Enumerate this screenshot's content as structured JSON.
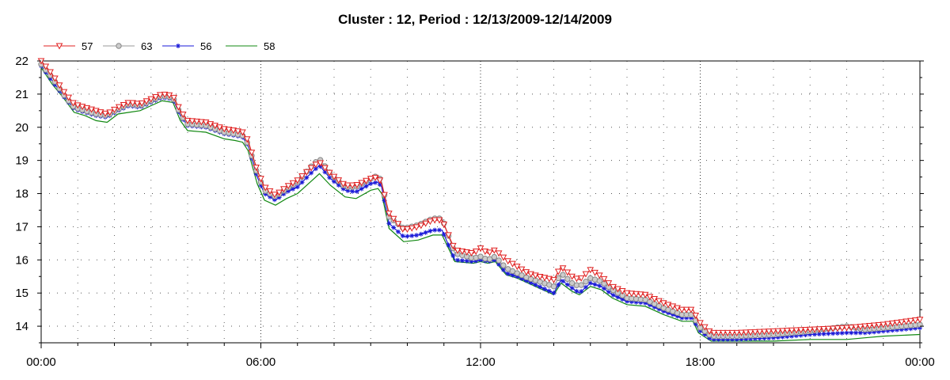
{
  "chart_data": {
    "type": "line",
    "title": "Cluster : 12, Period : 12/13/2009-12/14/2009",
    "xlabel": "",
    "ylabel": "",
    "x_ticks": [
      "00:00",
      "06:00",
      "12:00",
      "18:00",
      "00:00"
    ],
    "x_range_hours": [
      0,
      24
    ],
    "y_ticks": [
      "14",
      "15",
      "16",
      "17",
      "18",
      "19",
      "20",
      "21",
      "22"
    ],
    "ylim": [
      13.5,
      22
    ],
    "grid": "dotted",
    "legend_position": "top-left",
    "series": [
      {
        "name": "57",
        "color": "#e02020",
        "marker": "triangle-down",
        "points": [
          [
            0,
            22.0
          ],
          [
            0.3,
            21.6
          ],
          [
            0.6,
            21.1
          ],
          [
            0.9,
            20.7
          ],
          [
            1.2,
            20.6
          ],
          [
            1.5,
            20.5
          ],
          [
            1.8,
            20.4
          ],
          [
            2.1,
            20.6
          ],
          [
            2.4,
            20.75
          ],
          [
            2.7,
            20.7
          ],
          [
            3.0,
            20.85
          ],
          [
            3.3,
            21.0
          ],
          [
            3.6,
            20.95
          ],
          [
            3.8,
            20.5
          ],
          [
            4.0,
            20.2
          ],
          [
            4.5,
            20.15
          ],
          [
            5.0,
            19.95
          ],
          [
            5.3,
            19.9
          ],
          [
            5.5,
            19.85
          ],
          [
            5.65,
            19.6
          ],
          [
            5.9,
            18.7
          ],
          [
            6.1,
            18.2
          ],
          [
            6.4,
            17.95
          ],
          [
            6.7,
            18.2
          ],
          [
            7.0,
            18.4
          ],
          [
            7.4,
            18.8
          ],
          [
            7.6,
            18.95
          ],
          [
            7.9,
            18.6
          ],
          [
            8.3,
            18.25
          ],
          [
            8.6,
            18.25
          ],
          [
            9.0,
            18.45
          ],
          [
            9.2,
            18.5
          ],
          [
            9.3,
            18.3
          ],
          [
            9.5,
            17.4
          ],
          [
            9.9,
            16.9
          ],
          [
            10.3,
            17.0
          ],
          [
            10.7,
            17.2
          ],
          [
            10.95,
            17.2
          ],
          [
            11.3,
            16.3
          ],
          [
            11.8,
            16.2
          ],
          [
            12.0,
            16.35
          ],
          [
            12.2,
            16.2
          ],
          [
            12.4,
            16.3
          ],
          [
            12.7,
            16.0
          ],
          [
            13.0,
            15.8
          ],
          [
            13.3,
            15.6
          ],
          [
            13.6,
            15.5
          ],
          [
            14.0,
            15.4
          ],
          [
            14.2,
            15.8
          ],
          [
            14.5,
            15.5
          ],
          [
            14.7,
            15.4
          ],
          [
            15.0,
            15.7
          ],
          [
            15.3,
            15.5
          ],
          [
            15.6,
            15.2
          ],
          [
            16.0,
            15.0
          ],
          [
            16.5,
            14.95
          ],
          [
            17.0,
            14.7
          ],
          [
            17.5,
            14.5
          ],
          [
            17.8,
            14.5
          ],
          [
            17.95,
            14.15
          ],
          [
            18.3,
            13.8
          ],
          [
            19.0,
            13.8
          ],
          [
            20.0,
            13.85
          ],
          [
            21.0,
            13.9
          ],
          [
            22.0,
            13.95
          ],
          [
            22.5,
            14.0
          ],
          [
            23.0,
            14.05
          ],
          [
            24.0,
            14.2
          ]
        ]
      },
      {
        "name": "63",
        "color": "#999999",
        "marker": "circle",
        "points": [
          [
            0,
            21.9
          ],
          [
            0.3,
            21.5
          ],
          [
            0.6,
            21.0
          ],
          [
            0.9,
            20.6
          ],
          [
            1.2,
            20.5
          ],
          [
            1.5,
            20.4
          ],
          [
            1.8,
            20.35
          ],
          [
            2.1,
            20.55
          ],
          [
            2.4,
            20.7
          ],
          [
            2.7,
            20.65
          ],
          [
            3.0,
            20.8
          ],
          [
            3.3,
            20.95
          ],
          [
            3.6,
            20.9
          ],
          [
            3.8,
            20.4
          ],
          [
            4.0,
            20.1
          ],
          [
            4.5,
            20.05
          ],
          [
            5.0,
            19.85
          ],
          [
            5.3,
            19.8
          ],
          [
            5.5,
            19.75
          ],
          [
            5.65,
            19.5
          ],
          [
            5.9,
            18.6
          ],
          [
            6.1,
            18.1
          ],
          [
            6.4,
            17.9
          ],
          [
            6.7,
            18.15
          ],
          [
            7.0,
            18.35
          ],
          [
            7.4,
            18.85
          ],
          [
            7.6,
            19.05
          ],
          [
            7.9,
            18.6
          ],
          [
            8.3,
            18.2
          ],
          [
            8.6,
            18.2
          ],
          [
            9.0,
            18.45
          ],
          [
            9.2,
            18.55
          ],
          [
            9.3,
            18.35
          ],
          [
            9.5,
            17.3
          ],
          [
            9.9,
            16.95
          ],
          [
            10.3,
            17.05
          ],
          [
            10.7,
            17.25
          ],
          [
            10.95,
            17.25
          ],
          [
            11.3,
            16.2
          ],
          [
            11.8,
            16.05
          ],
          [
            12.0,
            16.1
          ],
          [
            12.2,
            16.0
          ],
          [
            12.4,
            16.1
          ],
          [
            12.7,
            15.75
          ],
          [
            13.0,
            15.6
          ],
          [
            13.3,
            15.45
          ],
          [
            13.6,
            15.35
          ],
          [
            14.0,
            15.2
          ],
          [
            14.2,
            15.6
          ],
          [
            14.5,
            15.3
          ],
          [
            14.7,
            15.2
          ],
          [
            15.0,
            15.45
          ],
          [
            15.3,
            15.35
          ],
          [
            15.6,
            15.1
          ],
          [
            16.0,
            14.85
          ],
          [
            16.5,
            14.8
          ],
          [
            17.0,
            14.55
          ],
          [
            17.5,
            14.35
          ],
          [
            17.8,
            14.35
          ],
          [
            17.95,
            14.0
          ],
          [
            18.3,
            13.7
          ],
          [
            19.0,
            13.7
          ],
          [
            20.0,
            13.75
          ],
          [
            21.0,
            13.85
          ],
          [
            22.0,
            14.0
          ],
          [
            22.5,
            13.9
          ],
          [
            23.0,
            13.95
          ],
          [
            24.0,
            14.05
          ]
        ]
      },
      {
        "name": "56",
        "color": "#1a1ad8",
        "marker": "star",
        "points": [
          [
            0,
            21.85
          ],
          [
            0.3,
            21.4
          ],
          [
            0.6,
            20.95
          ],
          [
            0.9,
            20.55
          ],
          [
            1.2,
            20.45
          ],
          [
            1.5,
            20.35
          ],
          [
            1.8,
            20.3
          ],
          [
            2.1,
            20.5
          ],
          [
            2.4,
            20.65
          ],
          [
            2.7,
            20.6
          ],
          [
            3.0,
            20.75
          ],
          [
            3.3,
            20.9
          ],
          [
            3.6,
            20.85
          ],
          [
            3.8,
            20.35
          ],
          [
            4.0,
            20.05
          ],
          [
            4.5,
            20.0
          ],
          [
            5.0,
            19.8
          ],
          [
            5.3,
            19.75
          ],
          [
            5.5,
            19.7
          ],
          [
            5.65,
            19.45
          ],
          [
            5.9,
            18.5
          ],
          [
            6.1,
            18.0
          ],
          [
            6.4,
            17.8
          ],
          [
            6.7,
            18.05
          ],
          [
            7.0,
            18.2
          ],
          [
            7.4,
            18.65
          ],
          [
            7.6,
            18.85
          ],
          [
            7.9,
            18.45
          ],
          [
            8.3,
            18.1
          ],
          [
            8.6,
            18.05
          ],
          [
            9.0,
            18.3
          ],
          [
            9.2,
            18.35
          ],
          [
            9.3,
            18.2
          ],
          [
            9.5,
            17.1
          ],
          [
            9.9,
            16.7
          ],
          [
            10.3,
            16.75
          ],
          [
            10.7,
            16.9
          ],
          [
            10.95,
            16.9
          ],
          [
            11.3,
            16.0
          ],
          [
            11.8,
            15.95
          ],
          [
            12.0,
            16.0
          ],
          [
            12.2,
            15.95
          ],
          [
            12.4,
            16.0
          ],
          [
            12.7,
            15.6
          ],
          [
            13.0,
            15.5
          ],
          [
            13.3,
            15.35
          ],
          [
            13.6,
            15.2
          ],
          [
            14.0,
            15.0
          ],
          [
            14.2,
            15.4
          ],
          [
            14.5,
            15.15
          ],
          [
            14.7,
            15.0
          ],
          [
            15.0,
            15.3
          ],
          [
            15.3,
            15.2
          ],
          [
            15.6,
            14.95
          ],
          [
            16.0,
            14.75
          ],
          [
            16.5,
            14.7
          ],
          [
            17.0,
            14.45
          ],
          [
            17.5,
            14.25
          ],
          [
            17.8,
            14.25
          ],
          [
            17.95,
            13.9
          ],
          [
            18.3,
            13.6
          ],
          [
            19.0,
            13.6
          ],
          [
            20.0,
            13.65
          ],
          [
            21.0,
            13.75
          ],
          [
            22.0,
            13.8
          ],
          [
            22.5,
            13.8
          ],
          [
            23.0,
            13.85
          ],
          [
            24.0,
            13.95
          ]
        ]
      },
      {
        "name": "58",
        "color": "#118811",
        "marker": "none",
        "points": [
          [
            0,
            21.8
          ],
          [
            0.3,
            21.3
          ],
          [
            0.6,
            20.9
          ],
          [
            0.9,
            20.45
          ],
          [
            1.2,
            20.35
          ],
          [
            1.5,
            20.2
          ],
          [
            1.8,
            20.15
          ],
          [
            2.1,
            20.4
          ],
          [
            2.4,
            20.45
          ],
          [
            2.7,
            20.5
          ],
          [
            3.0,
            20.65
          ],
          [
            3.3,
            20.8
          ],
          [
            3.6,
            20.75
          ],
          [
            3.8,
            20.2
          ],
          [
            4.0,
            19.9
          ],
          [
            4.5,
            19.85
          ],
          [
            5.0,
            19.65
          ],
          [
            5.3,
            19.6
          ],
          [
            5.5,
            19.55
          ],
          [
            5.65,
            19.3
          ],
          [
            5.9,
            18.3
          ],
          [
            6.1,
            17.8
          ],
          [
            6.4,
            17.65
          ],
          [
            6.7,
            17.85
          ],
          [
            7.0,
            18.0
          ],
          [
            7.4,
            18.4
          ],
          [
            7.6,
            18.6
          ],
          [
            7.9,
            18.25
          ],
          [
            8.3,
            17.9
          ],
          [
            8.6,
            17.85
          ],
          [
            9.0,
            18.1
          ],
          [
            9.2,
            18.15
          ],
          [
            9.3,
            18.0
          ],
          [
            9.5,
            16.95
          ],
          [
            9.9,
            16.55
          ],
          [
            10.3,
            16.6
          ],
          [
            10.7,
            16.75
          ],
          [
            10.95,
            16.75
          ],
          [
            11.3,
            15.95
          ],
          [
            11.8,
            15.9
          ],
          [
            12.0,
            15.95
          ],
          [
            12.2,
            15.9
          ],
          [
            12.4,
            15.95
          ],
          [
            12.7,
            15.55
          ],
          [
            13.0,
            15.45
          ],
          [
            13.3,
            15.3
          ],
          [
            13.6,
            15.15
          ],
          [
            14.0,
            14.95
          ],
          [
            14.2,
            15.3
          ],
          [
            14.5,
            15.05
          ],
          [
            14.7,
            14.95
          ],
          [
            15.0,
            15.2
          ],
          [
            15.3,
            15.1
          ],
          [
            15.6,
            14.85
          ],
          [
            16.0,
            14.65
          ],
          [
            16.5,
            14.6
          ],
          [
            17.0,
            14.35
          ],
          [
            17.5,
            14.15
          ],
          [
            17.8,
            14.15
          ],
          [
            17.95,
            13.8
          ],
          [
            18.3,
            13.55
          ],
          [
            19.0,
            13.55
          ],
          [
            20.0,
            13.55
          ],
          [
            21.0,
            13.6
          ],
          [
            22.0,
            13.6
          ],
          [
            22.5,
            13.65
          ],
          [
            23.0,
            13.7
          ],
          [
            24.0,
            13.75
          ]
        ]
      }
    ]
  }
}
